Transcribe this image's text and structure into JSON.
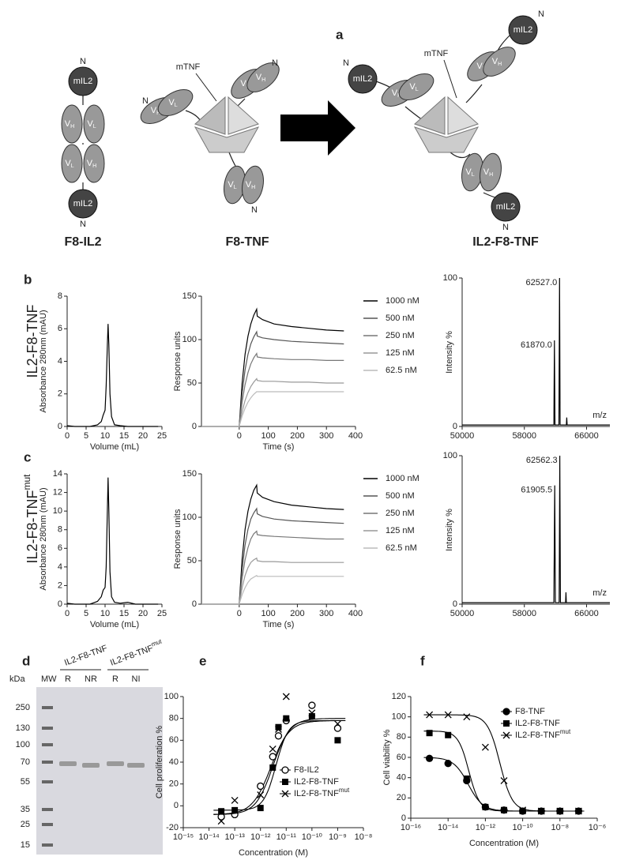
{
  "diagram": {
    "panel": "a",
    "n_terminus": "N",
    "il2": "mIL2",
    "tnf": "mTNF",
    "v": "V",
    "heavy": "H",
    "light": "L",
    "constructs": [
      "F8-IL2",
      "F8-TNF",
      "IL2-F8-TNF"
    ]
  },
  "rows": [
    {
      "label": "IL2-F8-TNF"
    },
    {
      "label": "IL2-F8-TNF",
      "superscript": "mut"
    }
  ],
  "gel": {
    "panel": "d",
    "unit": "kDa",
    "ladder": "MW",
    "groups": [
      {
        "name": "IL2-F8-TNF"
      },
      {
        "name": "IL2-F8-TNF",
        "superscript": "mut"
      }
    ],
    "lanes": [
      "R",
      "NR",
      "R",
      "NI"
    ],
    "markers": [
      250,
      130,
      100,
      70,
      55,
      35,
      25,
      15
    ]
  },
  "chart_data": [
    {
      "type": "line",
      "panel": "b",
      "xlabel": "Volume (mL)",
      "ylabel": "Absorbance 280nm (mAU)",
      "color": "#000000",
      "x": [
        0,
        2,
        4,
        6,
        8,
        9,
        9.5,
        10,
        10.3,
        10.6,
        10.8,
        11,
        11.3,
        11.7,
        12.5,
        14,
        16,
        18,
        20,
        22,
        24
      ],
      "values": [
        0.05,
        0,
        0,
        0,
        0.1,
        0.3,
        0.7,
        1,
        2.5,
        5,
        6.3,
        5,
        2,
        0.6,
        0.1,
        0.05,
        0,
        0,
        0,
        0,
        0
      ],
      "xlim": [
        0,
        25
      ],
      "xticks": [
        0,
        5,
        10,
        15,
        20,
        25
      ],
      "ylim": [
        0,
        8
      ],
      "yticks": [
        0,
        2,
        4,
        6,
        8
      ]
    },
    {
      "type": "line",
      "xlabel": "Time (s)",
      "ylabel": "Response units",
      "legend": "right",
      "x": [
        -130,
        0,
        10,
        20,
        30,
        40,
        50,
        60,
        62,
        80,
        120,
        180,
        240,
        300,
        360
      ],
      "series": [
        {
          "name": "1000 nM",
          "color": "#000000",
          "values": [
            0,
            0,
            50,
            83,
            104,
            118,
            128,
            135,
            127,
            123,
            118,
            115,
            113,
            111,
            110
          ]
        },
        {
          "name": "500 nM",
          "color": "#555555",
          "values": [
            0,
            0,
            38,
            65,
            83,
            95,
            103,
            109,
            104,
            102,
            100,
            98,
            97,
            96,
            95
          ]
        },
        {
          "name": "250 nM",
          "color": "#777777",
          "values": [
            0,
            0,
            28,
            48,
            62,
            72,
            79,
            84,
            80,
            79,
            78,
            77,
            77,
            76,
            76
          ]
        },
        {
          "name": "125 nM",
          "color": "#999999",
          "values": [
            0,
            0,
            17,
            30,
            39,
            46,
            51,
            55,
            53,
            52,
            52,
            51,
            51,
            50,
            50
          ]
        },
        {
          "name": "62.5 nM",
          "color": "#bbbbbb",
          "values": [
            0,
            0,
            12,
            21,
            28,
            33,
            37,
            40,
            40,
            40,
            40,
            40,
            40,
            40,
            40
          ]
        }
      ],
      "xlim": [
        -130,
        400
      ],
      "xticks": [
        0,
        100,
        200,
        300,
        400
      ],
      "ylim": [
        0,
        150
      ],
      "yticks": [
        0,
        50,
        100,
        150
      ]
    },
    {
      "type": "line",
      "xlabel": "m/z",
      "ylabel": "Intensity %",
      "color": "#000000",
      "x": [
        50000,
        55000,
        61800,
        61870,
        61940,
        62450,
        62527,
        62600,
        63400,
        63450,
        63500,
        69000
      ],
      "values": [
        1,
        1,
        1,
        58,
        1,
        1,
        100,
        1,
        1,
        6,
        1,
        1
      ],
      "annotations": [
        {
          "text": "62527.0",
          "x": 62527
        },
        {
          "text": "61870.0",
          "x": 61870
        }
      ],
      "xlim": [
        50000,
        69000
      ],
      "xticks": [
        50000,
        58000,
        66000
      ],
      "ylim": [
        0,
        100
      ],
      "yticks": [
        0,
        100
      ]
    },
    {
      "type": "line",
      "panel": "c",
      "xlabel": "Volume (mL)",
      "ylabel": "Absorbance 280nm (mAU)",
      "color": "#000000",
      "x": [
        0,
        2,
        4,
        6,
        8,
        9,
        9.5,
        10,
        10.3,
        10.6,
        10.8,
        11,
        11.3,
        11.7,
        12.5,
        14,
        16,
        18,
        20,
        22,
        24
      ],
      "values": [
        0.1,
        0,
        0,
        0,
        0.3,
        0.8,
        1.5,
        1.8,
        4,
        10,
        13.6,
        10,
        3.5,
        0.8,
        0.2,
        0.1,
        0.2,
        0,
        0,
        0,
        0
      ],
      "xlim": [
        0,
        25
      ],
      "xticks": [
        0,
        5,
        10,
        15,
        20,
        25
      ],
      "ylim": [
        0,
        14
      ],
      "yticks": [
        0,
        2,
        4,
        6,
        8,
        10,
        12,
        14
      ]
    },
    {
      "type": "line",
      "xlabel": "Time (s)",
      "ylabel": "Response units",
      "legend": "right",
      "x": [
        -130,
        0,
        10,
        20,
        30,
        40,
        50,
        60,
        62,
        80,
        120,
        180,
        240,
        300,
        360
      ],
      "series": [
        {
          "name": "1000 nM",
          "color": "#000000",
          "values": [
            0,
            0,
            52,
            86,
            107,
            121,
            131,
            137,
            128,
            123,
            118,
            114,
            112,
            110,
            109
          ]
        },
        {
          "name": "500 nM",
          "color": "#555555",
          "values": [
            0,
            0,
            40,
            68,
            86,
            98,
            105,
            110,
            104,
            101,
            98,
            96,
            95,
            94,
            93
          ]
        },
        {
          "name": "250 nM",
          "color": "#777777",
          "values": [
            0,
            0,
            30,
            51,
            65,
            75,
            81,
            84,
            80,
            79,
            78,
            77,
            76,
            75,
            75
          ]
        },
        {
          "name": "125 nM",
          "color": "#999999",
          "values": [
            0,
            0,
            19,
            33,
            42,
            48,
            51,
            53,
            50,
            49,
            49,
            48,
            48,
            48,
            48
          ]
        },
        {
          "name": "62.5 nM",
          "color": "#bbbbbb",
          "values": [
            0,
            0,
            11,
            19,
            25,
            29,
            31,
            33,
            32,
            32,
            32,
            32,
            32,
            32,
            32
          ]
        }
      ],
      "xlim": [
        -130,
        400
      ],
      "xticks": [
        0,
        100,
        200,
        300,
        400
      ],
      "ylim": [
        0,
        150
      ],
      "yticks": [
        0,
        50,
        100,
        150
      ]
    },
    {
      "type": "line",
      "xlabel": "m/z",
      "ylabel": "Intensity %",
      "color": "#000000",
      "x": [
        50000,
        55000,
        61800,
        61905,
        61990,
        62480,
        62562,
        62640,
        63300,
        63350,
        63400,
        69000
      ],
      "values": [
        1,
        1,
        1,
        80,
        1,
        1,
        100,
        1,
        1,
        8,
        1,
        1
      ],
      "annotations": [
        {
          "text": "62562.3",
          "x": 62562
        },
        {
          "text": "61905.5",
          "x": 61905
        }
      ],
      "xlim": [
        50000,
        69000
      ],
      "xticks": [
        50000,
        58000,
        66000
      ],
      "ylim": [
        0,
        100
      ],
      "yticks": [
        0,
        100
      ]
    },
    {
      "type": "scatter",
      "panel": "e",
      "xlabel": "Concentration (M)",
      "ylabel": "Cell proliferation %",
      "xscale": "log",
      "x": [
        3e-14,
        1e-13,
        1e-12,
        3e-12,
        5e-12,
        1e-11,
        1e-10,
        1e-09
      ],
      "series": [
        {
          "name": "F8-IL2",
          "marker": "open-circle",
          "color": "#000000",
          "values": [
            -10,
            -8,
            18,
            45,
            64,
            78,
            92,
            71
          ],
          "fit": {
            "bottom": -8,
            "top": 78,
            "ec50": 2.5e-12,
            "hill": 1.2
          }
        },
        {
          "name": "IL2-F8-TNF",
          "marker": "square",
          "color": "#000000",
          "values": [
            -5,
            -4,
            -2,
            35,
            72,
            80,
            82,
            60
          ],
          "fit": {
            "bottom": -4,
            "top": 78,
            "ec50": 4e-12,
            "hill": 1.8
          }
        },
        {
          "name": "IL2-F8-TNF",
          "name_superscript": "mut",
          "marker": "cross",
          "color": "#000000",
          "values": [
            -14,
            5,
            10,
            52,
            70,
            100,
            85,
            75
          ],
          "fit": {
            "bottom": -8,
            "top": 80,
            "ec50": 3e-12,
            "hill": 1.3
          }
        }
      ],
      "xlim": [
        1e-15,
        1e-08
      ],
      "xticks": [
        {
          "value": 1e-15,
          "label": "10⁻¹⁵"
        },
        {
          "value": 1e-14,
          "label": "10⁻¹⁴"
        },
        {
          "value": 1e-13,
          "label": "10⁻¹³"
        },
        {
          "value": 1e-12,
          "label": "10⁻¹²"
        },
        {
          "value": 1e-11,
          "label": "10⁻¹¹"
        },
        {
          "value": 1e-10,
          "label": "10⁻¹⁰"
        },
        {
          "value": 1e-09,
          "label": "10⁻⁹"
        },
        {
          "value": 1e-08,
          "label": "10⁻⁸"
        }
      ],
      "ylim": [
        -20,
        100
      ],
      "yticks": [
        -20,
        0,
        20,
        40,
        60,
        80,
        100
      ]
    },
    {
      "type": "scatter",
      "panel": "f",
      "xlabel": "Concentration (M)",
      "ylabel": "Cell viability %",
      "xscale": "log",
      "x": [
        1e-15,
        1e-14,
        1e-13,
        1e-12,
        1e-11,
        1e-10,
        1e-09,
        1e-08,
        1e-07
      ],
      "series": [
        {
          "name": "F8-TNF",
          "marker": "filled-circle",
          "color": "#000000",
          "values": [
            59,
            54,
            37,
            11,
            8,
            7,
            7,
            7,
            7
          ],
          "fit": {
            "bottom": 7,
            "top": 60,
            "ec50": 1.2e-13,
            "hill": -1.1
          }
        },
        {
          "name": "IL2-F8-TNF",
          "marker": "square",
          "color": "#000000",
          "values": [
            84,
            82,
            39,
            11,
            8,
            7,
            7,
            7,
            7
          ],
          "fit": {
            "bottom": 7,
            "top": 86,
            "ec50": 1.3e-13,
            "hill": -1.5
          }
        },
        {
          "name": "IL2-F8-TNF",
          "name_superscript": "mut",
          "marker": "cross",
          "color": "#000000",
          "values": [
            102,
            102,
            100,
            70,
            37,
            8,
            7,
            7,
            7
          ],
          "fit": {
            "bottom": 7,
            "top": 102,
            "ec50": 6e-12,
            "hill": -1.3
          }
        }
      ],
      "xlim": [
        1e-16,
        1e-06
      ],
      "xticks": [
        {
          "value": 1e-16,
          "label": "10⁻¹⁶"
        },
        {
          "value": 1e-14,
          "label": "10⁻¹⁴"
        },
        {
          "value": 1e-12,
          "label": "10⁻¹²"
        },
        {
          "value": 1e-10,
          "label": "10⁻¹⁰"
        },
        {
          "value": 1e-08,
          "label": "10⁻⁸"
        },
        {
          "value": 1e-06,
          "label": "10⁻⁶"
        }
      ],
      "ylim": [
        0,
        120
      ],
      "yticks": [
        0,
        20,
        40,
        60,
        80,
        100,
        120
      ]
    }
  ]
}
